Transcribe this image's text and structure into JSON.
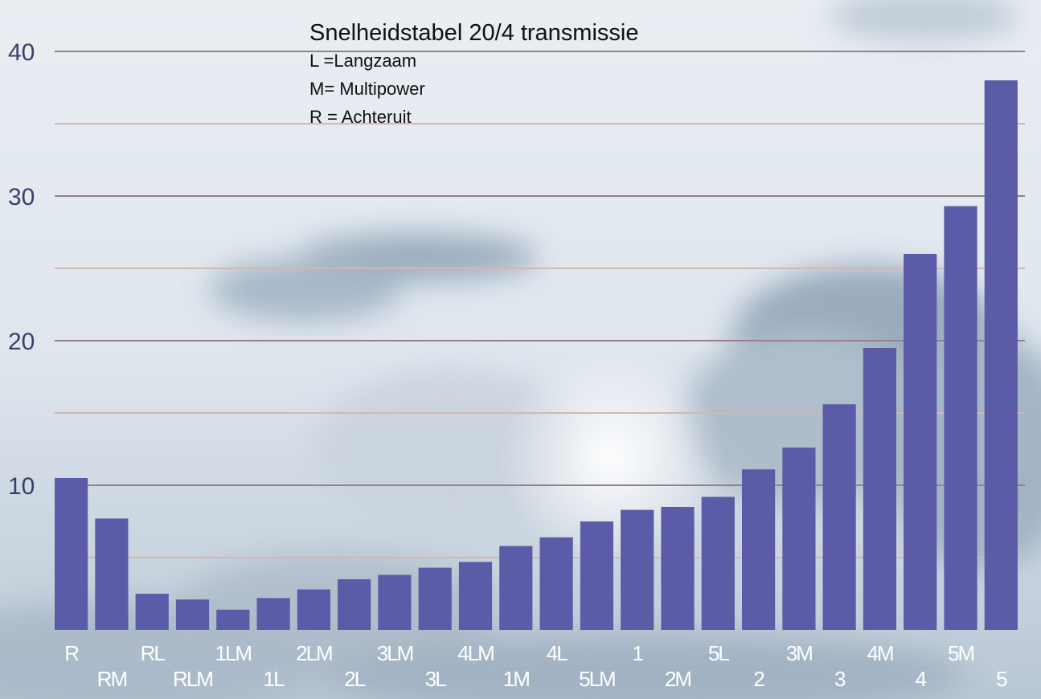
{
  "chart_data": {
    "type": "bar",
    "title": "Snelheidstabel 20/4 transmissie",
    "legend_lines": [
      "L =Langzaam",
      "M= Multipower",
      "R = Achteruit"
    ],
    "xlabel": "",
    "ylabel": "",
    "ylim": [
      0,
      40
    ],
    "yticks": [
      10,
      20,
      30,
      40
    ],
    "grid": true,
    "categories": [
      "R",
      "RM",
      "RL",
      "RLM",
      "1LM",
      "1L",
      "2LM",
      "2L",
      "3LM",
      "3L",
      "4LM",
      "1M",
      "4L",
      "5LM",
      "1",
      "2M",
      "5L",
      "2",
      "3M",
      "3",
      "4M",
      "4",
      "5M",
      "5"
    ],
    "values": [
      10.5,
      7.7,
      2.5,
      2.1,
      1.4,
      2.2,
      2.8,
      3.5,
      3.8,
      4.3,
      4.7,
      5.8,
      6.4,
      7.5,
      8.3,
      8.5,
      9.2,
      11.1,
      12.6,
      15.6,
      19.5,
      26.0,
      29.3,
      38.0
    ],
    "bar_color": "#5b5ba8"
  }
}
